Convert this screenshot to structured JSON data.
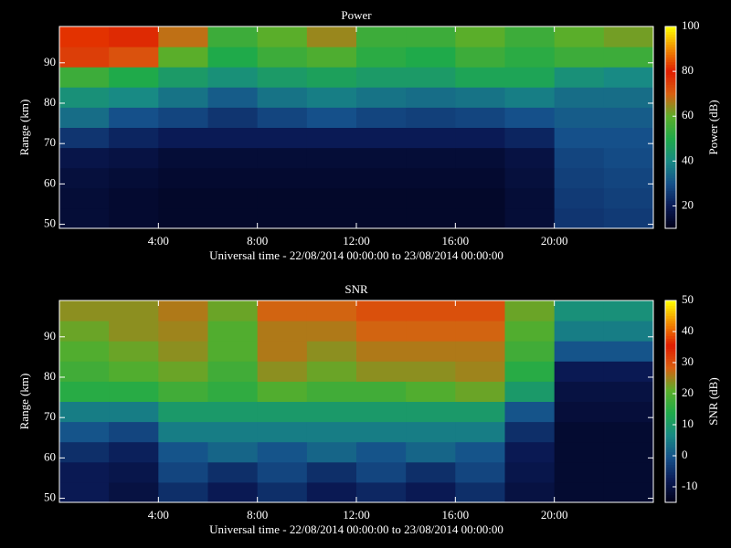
{
  "chart_data": [
    {
      "type": "heatmap",
      "title": "Power",
      "xlabel": "Universal time - 22/08/2014 00:00:00 to 23/08/2014 00:00:00",
      "ylabel": "Range (km)",
      "zlabel": "Power (dB)",
      "xbins": [
        0,
        2,
        4,
        6,
        8,
        10,
        12,
        14,
        16,
        18,
        20,
        22,
        24
      ],
      "ybins": [
        49,
        54,
        59,
        64,
        69,
        74,
        79,
        84,
        89,
        94,
        99
      ],
      "xlim": [
        0,
        24
      ],
      "xticks": [
        {
          "value": 4,
          "label": "4:00"
        },
        {
          "value": 8,
          "label": "8:00"
        },
        {
          "value": 12,
          "label": "12:00"
        },
        {
          "value": 16,
          "label": "16:00"
        },
        {
          "value": 20,
          "label": "20:00"
        }
      ],
      "ylim": [
        49,
        99
      ],
      "yticks": [
        50,
        60,
        70,
        80,
        90
      ],
      "zlim": [
        10,
        100
      ],
      "zticks": [
        20,
        40,
        60,
        80,
        100
      ],
      "colormap": [
        "#000018",
        "#0a1a55",
        "#15508a",
        "#188a84",
        "#1faa4a",
        "#5aae2a",
        "#d86010",
        "#e01c00",
        "#f08a00",
        "#ffff00"
      ],
      "values": [
        [
          15,
          14,
          13,
          13,
          13,
          13,
          13,
          13,
          13,
          15,
          25,
          26
        ],
        [
          15,
          14,
          13,
          13,
          13,
          13,
          13,
          13,
          13,
          15,
          26,
          27
        ],
        [
          16,
          15,
          14,
          14,
          14,
          14,
          14,
          14,
          14,
          16,
          27,
          28
        ],
        [
          18,
          17,
          15,
          15,
          15,
          15,
          15,
          15,
          15,
          17,
          28,
          29
        ],
        [
          25,
          22,
          20,
          20,
          20,
          20,
          20,
          20,
          20,
          22,
          30,
          30
        ],
        [
          35,
          30,
          28,
          25,
          28,
          30,
          28,
          27,
          28,
          30,
          32,
          32
        ],
        [
          42,
          40,
          36,
          32,
          36,
          38,
          36,
          35,
          36,
          38,
          35,
          35
        ],
        [
          55,
          50,
          45,
          42,
          45,
          47,
          45,
          45,
          48,
          48,
          42,
          40
        ],
        [
          75,
          72,
          60,
          50,
          55,
          58,
          52,
          50,
          55,
          52,
          55,
          55
        ],
        [
          82,
          78,
          68,
          55,
          60,
          65,
          55,
          55,
          60,
          55,
          60,
          62
        ]
      ]
    },
    {
      "type": "heatmap",
      "title": "SNR",
      "xlabel": "Universal time - 22/08/2014 00:00:00 to 23/08/2014 00:00:00",
      "ylabel": "Range (km)",
      "zlabel": "SNR (dB)",
      "xbins": [
        0,
        2,
        4,
        6,
        8,
        10,
        12,
        14,
        16,
        18,
        20,
        22,
        24
      ],
      "ybins": [
        49,
        54,
        59,
        64,
        69,
        74,
        79,
        84,
        89,
        94,
        99
      ],
      "xlim": [
        0,
        24
      ],
      "xticks": [
        {
          "value": 4,
          "label": "4:00"
        },
        {
          "value": 8,
          "label": "8:00"
        },
        {
          "value": 12,
          "label": "12:00"
        },
        {
          "value": 16,
          "label": "16:00"
        },
        {
          "value": 20,
          "label": "20:00"
        }
      ],
      "ylim": [
        49,
        99
      ],
      "yticks": [
        50,
        60,
        70,
        80,
        90
      ],
      "zlim": [
        -15,
        50
      ],
      "zticks": [
        -10,
        0,
        10,
        20,
        30,
        40,
        50
      ],
      "colormap": [
        "#000018",
        "#0a1a55",
        "#15508a",
        "#188a84",
        "#1faa4a",
        "#5aae2a",
        "#d86010",
        "#e01c00",
        "#f08a00",
        "#ffff00"
      ],
      "values": [
        [
          -8,
          -10,
          -5,
          -8,
          -5,
          -8,
          -6,
          -8,
          -5,
          -10,
          -12,
          -12
        ],
        [
          -8,
          -9,
          -2,
          -5,
          -2,
          -5,
          -2,
          -5,
          -2,
          -9,
          -12,
          -12
        ],
        [
          -5,
          -7,
          0,
          2,
          0,
          2,
          0,
          2,
          0,
          -8,
          -12,
          -12
        ],
        [
          0,
          -2,
          5,
          5,
          5,
          5,
          5,
          5,
          5,
          -5,
          -12,
          -12
        ],
        [
          5,
          5,
          10,
          10,
          10,
          10,
          10,
          10,
          10,
          0,
          -11,
          -11
        ],
        [
          15,
          15,
          18,
          16,
          20,
          18,
          18,
          20,
          22,
          10,
          -10,
          -10
        ],
        [
          18,
          20,
          22,
          18,
          24,
          22,
          24,
          24,
          25,
          15,
          -8,
          -8
        ],
        [
          20,
          22,
          24,
          20,
          26,
          24,
          26,
          26,
          26,
          18,
          0,
          0
        ],
        [
          22,
          24,
          25,
          20,
          26,
          26,
          28,
          28,
          28,
          20,
          5,
          5
        ],
        [
          24,
          24,
          26,
          22,
          28,
          28,
          30,
          30,
          30,
          22,
          8,
          8
        ]
      ]
    }
  ]
}
